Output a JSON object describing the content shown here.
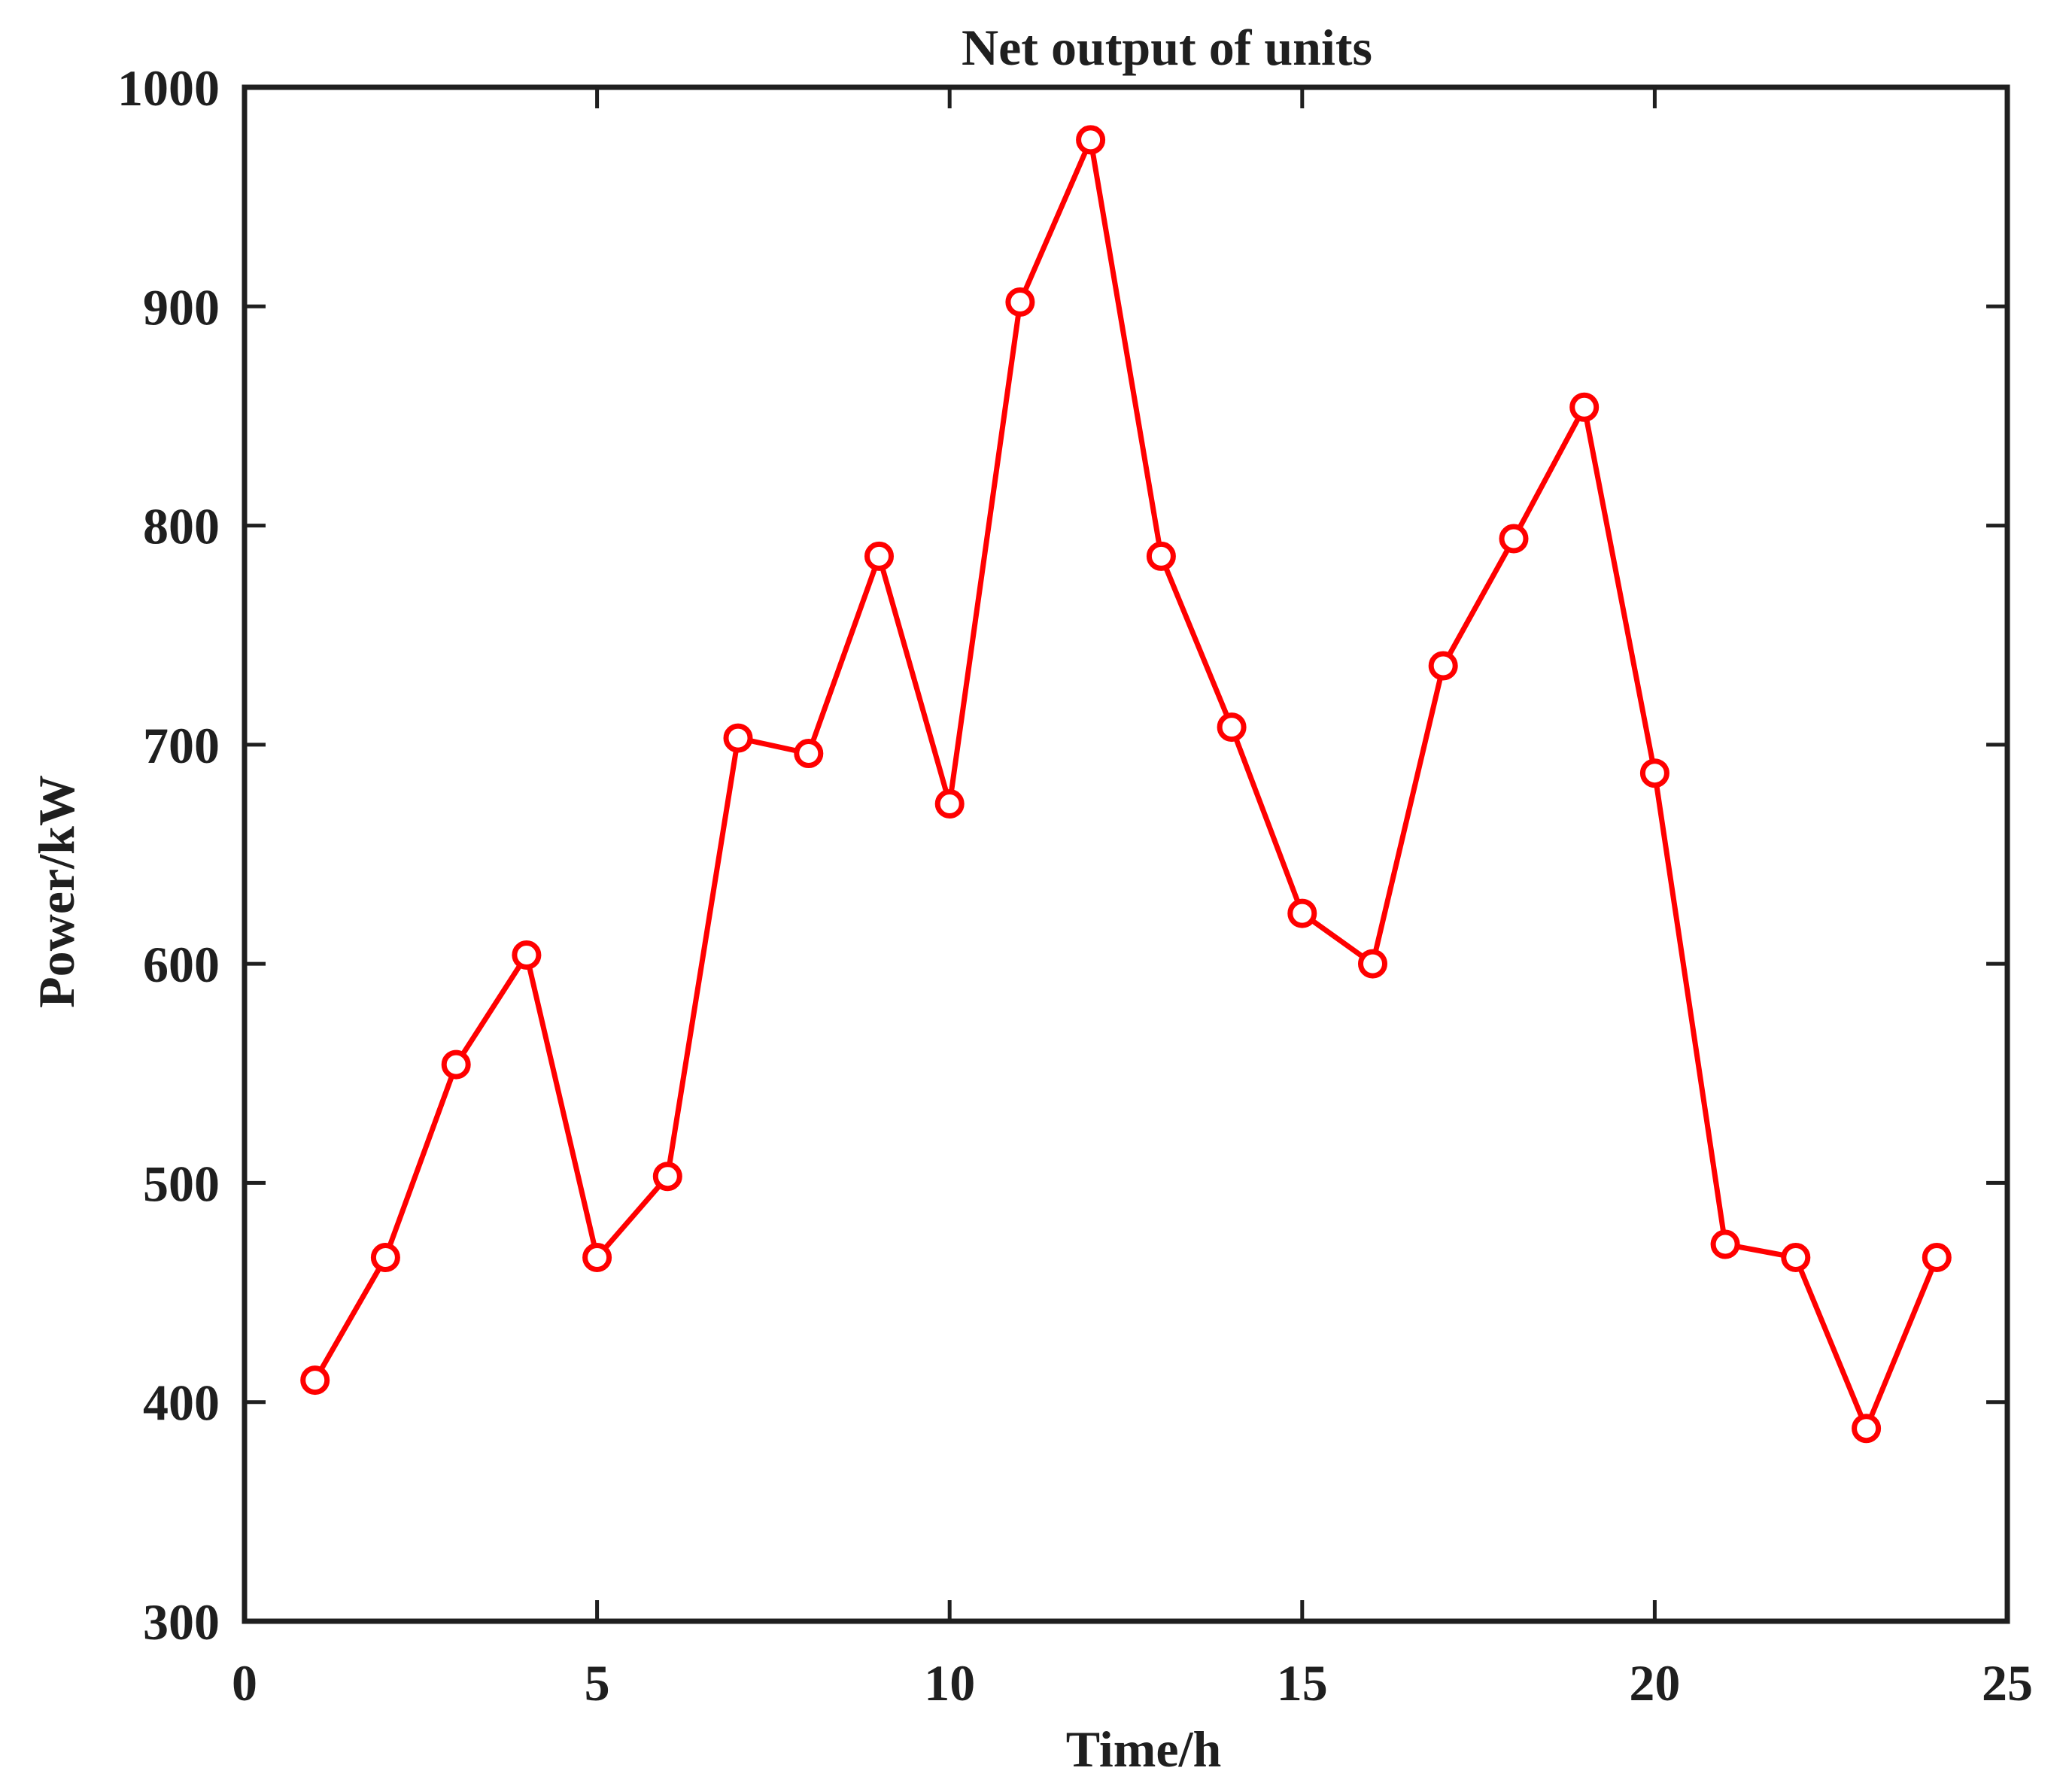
{
  "chart_data": {
    "type": "line",
    "title": "Net output of units",
    "xlabel": "Time/h",
    "ylabel": "Power/kW",
    "xlim": [
      0,
      25
    ],
    "ylim": [
      300,
      1000
    ],
    "xticks": [
      0,
      5,
      10,
      15,
      20,
      25
    ],
    "yticks": [
      300,
      400,
      500,
      600,
      700,
      800,
      900,
      1000
    ],
    "grid": false,
    "series": [
      {
        "color": "#ff0000",
        "marker": "circle",
        "x": [
          1,
          2,
          3,
          4,
          5,
          6,
          7,
          8,
          9,
          10,
          11,
          12,
          13,
          14,
          15,
          16,
          17,
          18,
          19,
          20,
          21,
          22,
          23,
          24
        ],
        "y": [
          410,
          466,
          554,
          604,
          466,
          503,
          703,
          696,
          786,
          673,
          902,
          976,
          786,
          708,
          623,
          600,
          736,
          794,
          854,
          687,
          472,
          466,
          388,
          466
        ]
      }
    ]
  }
}
